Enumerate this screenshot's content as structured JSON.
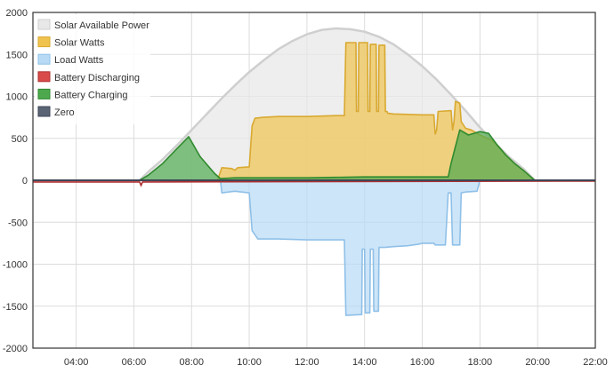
{
  "chart_data": {
    "type": "area",
    "x_unit": "hours",
    "xlim": [
      2.5,
      22
    ],
    "ylim": [
      -2000,
      2000
    ],
    "y_ticks": [
      -2000,
      -1500,
      -1000,
      -500,
      0,
      500,
      1000,
      1500,
      2000
    ],
    "x_ticks": [
      4,
      6,
      8,
      10,
      12,
      14,
      16,
      18,
      20,
      22
    ],
    "x_tick_labels": [
      "04:00",
      "06:00",
      "08:00",
      "10:00",
      "12:00",
      "14:00",
      "16:00",
      "18:00",
      "20:00",
      "22:00"
    ],
    "y_tick_labels": [
      "-2000",
      "-1500",
      "-1000",
      "-500",
      "0",
      "500",
      "1000",
      "1500",
      "2000"
    ],
    "grid": true,
    "legend_position": "top-left",
    "legend": [
      {
        "name": "Solar Available Power",
        "color": "#e8e8e8",
        "border": "#cfcfcf"
      },
      {
        "name": "Solar Watts",
        "color": "#f0c34e",
        "border": "#d9a930"
      },
      {
        "name": "Load Watts",
        "color": "#b8daf5",
        "border": "#8fc0e8"
      },
      {
        "name": "Battery Discharging",
        "color": "#d94a4a",
        "border": "#b03030"
      },
      {
        "name": "Battery Charging",
        "color": "#4ea94e",
        "border": "#2f8a2f"
      },
      {
        "name": "Zero",
        "color": "#5a6475",
        "border": "#3e4656"
      }
    ],
    "series": [
      {
        "name": "Solar Available Power",
        "x": [
          6.2,
          6.5,
          7.0,
          7.5,
          8.0,
          8.5,
          9.0,
          9.5,
          10.0,
          10.5,
          11.0,
          11.5,
          12.0,
          12.5,
          13.0,
          13.5,
          14.0,
          14.5,
          15.0,
          15.5,
          16.0,
          16.5,
          17.0,
          17.5,
          18.0,
          18.5,
          19.0,
          19.5,
          19.9
        ],
        "y": [
          0,
          100,
          250,
          420,
          600,
          780,
          960,
          1130,
          1290,
          1430,
          1560,
          1660,
          1740,
          1790,
          1810,
          1800,
          1770,
          1710,
          1620,
          1500,
          1360,
          1200,
          1020,
          830,
          630,
          450,
          280,
          140,
          0
        ]
      },
      {
        "name": "Solar Watts",
        "x": [
          8.9,
          9.0,
          9.05,
          9.4,
          9.5,
          9.6,
          10.0,
          10.1,
          10.2,
          10.5,
          11.0,
          12.0,
          13.0,
          13.3,
          13.35,
          13.7,
          13.72,
          13.78,
          13.8,
          14.1,
          14.12,
          14.18,
          14.2,
          14.4,
          14.42,
          14.48,
          14.5,
          14.7,
          14.72,
          14.78,
          14.8,
          15.0,
          16.0,
          16.4,
          16.45,
          16.5,
          16.55,
          17.0,
          17.05,
          17.1,
          17.15,
          17.3,
          17.35,
          17.5,
          17.7,
          18.0,
          18.4,
          18.6,
          18.9,
          19.2,
          19.5,
          19.9
        ],
        "y": [
          0,
          100,
          150,
          140,
          120,
          150,
          160,
          650,
          740,
          750,
          760,
          760,
          770,
          770,
          1640,
          1640,
          820,
          820,
          1640,
          1640,
          820,
          820,
          1620,
          1620,
          820,
          820,
          1610,
          1610,
          820,
          820,
          800,
          790,
          780,
          780,
          550,
          600,
          820,
          830,
          600,
          700,
          940,
          920,
          700,
          620,
          600,
          540,
          480,
          420,
          300,
          200,
          120,
          0
        ]
      },
      {
        "name": "Load Watts",
        "x": [
          9.0,
          9.05,
          9.5,
          10.0,
          10.1,
          10.3,
          11.0,
          12.0,
          13.0,
          13.3,
          13.35,
          13.9,
          13.92,
          14.0,
          14.02,
          14.18,
          14.2,
          14.3,
          14.32,
          14.48,
          14.5,
          14.7,
          15.0,
          15.5,
          15.9,
          16.0,
          16.4,
          16.45,
          16.8,
          16.9,
          17.0,
          17.05,
          17.1,
          17.15,
          17.3,
          17.35,
          17.5,
          17.9,
          18.0
        ],
        "y": [
          0,
          -150,
          -130,
          -150,
          -600,
          -700,
          -700,
          -710,
          -710,
          -710,
          -1610,
          -1600,
          -820,
          -820,
          -1580,
          -1580,
          -820,
          -820,
          -1560,
          -1560,
          -800,
          -800,
          -790,
          -780,
          -760,
          -750,
          -750,
          -770,
          -770,
          -150,
          -150,
          -770,
          -770,
          -770,
          -770,
          -150,
          -140,
          -130,
          0
        ]
      },
      {
        "name": "Battery Charging",
        "x": [
          6.2,
          6.5,
          7.0,
          7.5,
          7.9,
          8.3,
          8.8,
          9.0,
          9.5,
          10.0,
          11.0,
          12.0,
          13.0,
          14.0,
          15.0,
          16.0,
          16.9,
          17.0,
          17.3,
          17.6,
          18.0,
          18.3,
          18.6,
          18.9,
          19.2,
          19.5,
          19.9
        ],
        "y": [
          0,
          60,
          200,
          380,
          520,
          280,
          80,
          20,
          30,
          30,
          30,
          30,
          35,
          40,
          40,
          40,
          40,
          200,
          600,
          540,
          580,
          560,
          420,
          300,
          200,
          120,
          0
        ]
      },
      {
        "name": "Battery Discharging",
        "x": [
          2.5,
          6.2,
          6.25,
          6.3,
          22.0
        ],
        "y": [
          -20,
          -20,
          -60,
          -20,
          -10
        ]
      },
      {
        "name": "Zero",
        "x": [
          2.5,
          22.0
        ],
        "y": [
          0,
          0
        ]
      }
    ]
  }
}
